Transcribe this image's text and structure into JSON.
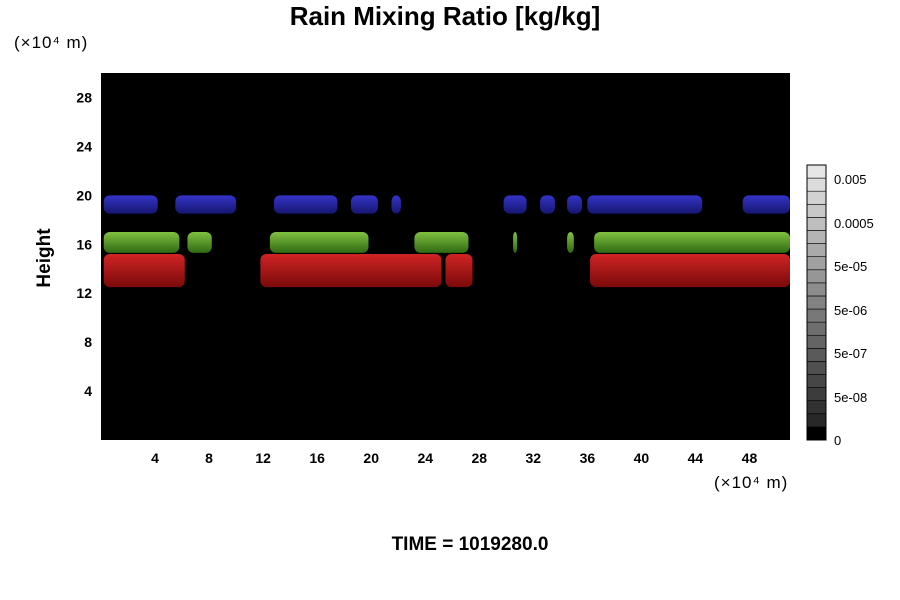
{
  "chart_data": {
    "type": "heatmap",
    "title": "Rain Mixing Ratio [kg/kg]",
    "ylabel": "Height",
    "xlabel": "",
    "x_units": "(×10⁴ m)",
    "y_units": "(×10⁴ m)",
    "xlim": [
      0,
      51
    ],
    "ylim": [
      0,
      30
    ],
    "x_ticks": [
      "4",
      "8",
      "12",
      "16",
      "20",
      "24",
      "28",
      "32",
      "36",
      "40",
      "44",
      "48"
    ],
    "y_ticks": [
      "4",
      "8",
      "12",
      "16",
      "20",
      "24",
      "28"
    ],
    "colorbar": {
      "labels": [
        "0.005",
        "0.0005",
        "5e-05",
        "5e-06",
        "5e-07",
        "5e-08",
        "0"
      ],
      "label_values": [
        0.005,
        0.0005,
        5e-05,
        5e-06,
        5e-07,
        5e-08,
        0
      ]
    },
    "background_color": "#000000",
    "layers": [
      {
        "color": "#2222aa",
        "y_range": [
          18.5,
          20
        ],
        "segments": [
          [
            0.2,
            4.2
          ],
          [
            5.5,
            10
          ],
          [
            12.8,
            17.5
          ],
          [
            18.5,
            20.5
          ],
          [
            21.5,
            22.2
          ],
          [
            29.8,
            31.5
          ],
          [
            32.5,
            33.6
          ],
          [
            34.5,
            35.6
          ],
          [
            36,
            44.5
          ],
          [
            47.5,
            51
          ]
        ]
      },
      {
        "color": "#4a8a1c",
        "y_range": [
          15.3,
          17
        ],
        "segments": [
          [
            0.2,
            5.8
          ],
          [
            6.4,
            8.2
          ],
          [
            12.5,
            19.8
          ],
          [
            23.2,
            27.2
          ],
          [
            30.5,
            30.8
          ],
          [
            34.5,
            35
          ],
          [
            36.5,
            51
          ]
        ]
      },
      {
        "color": "#b01a1a",
        "y_range": [
          12.5,
          15.2
        ],
        "segments": [
          [
            0.2,
            6.2
          ],
          [
            11.8,
            25.2
          ],
          [
            25.5,
            27.5
          ],
          [
            36.2,
            51
          ]
        ]
      }
    ]
  },
  "footer": {
    "time_label": "TIME = 1019280.0"
  }
}
